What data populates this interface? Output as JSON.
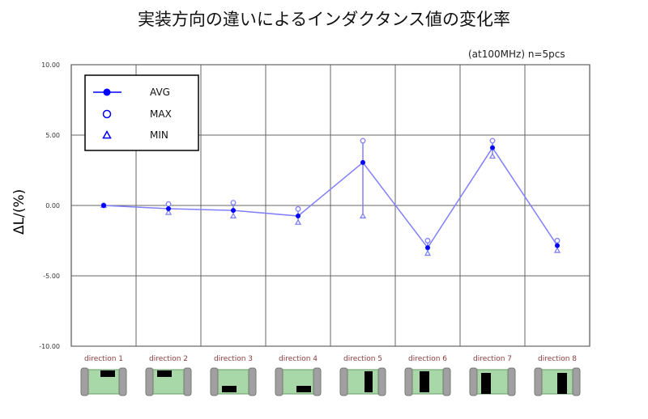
{
  "chart_data": {
    "type": "line",
    "title": "実装方向の違いによるインダクタンス値の変化率",
    "subtitle": "(at100MHz)  n=5pcs",
    "ylabel": "ΔL/(%)",
    "xlabel": "",
    "ylim": [
      -10,
      10
    ],
    "yticks": [
      "10.00",
      "5.00",
      "0.00",
      "-5.00",
      "-10.00"
    ],
    "ytick_values": [
      10,
      5,
      0,
      -5,
      -10
    ],
    "grid": true,
    "legend_placement": "top-left",
    "categories": [
      "direction 1",
      "direction 2",
      "direction 3",
      "direction 4",
      "direction 5",
      "direction 6",
      "direction 7",
      "direction 8"
    ],
    "series": [
      {
        "name": "AVG",
        "marker": "filled-circle",
        "values": [
          0,
          -0.23,
          -0.35,
          -0.75,
          3.05,
          -3.0,
          4.1,
          -2.85
        ]
      },
      {
        "name": "MAX",
        "marker": "open-circle",
        "values": [
          0,
          0.1,
          0.2,
          -0.25,
          4.6,
          -2.5,
          4.6,
          -2.5
        ]
      },
      {
        "name": "MIN",
        "marker": "open-triangle",
        "values": [
          0,
          -0.5,
          -0.75,
          -1.2,
          -0.75,
          -3.4,
          3.5,
          -3.2
        ]
      }
    ],
    "colors": {
      "avg": "#0000ff",
      "line": "#8080ff",
      "category_label": "#8a3a3a",
      "chip_body": "#a8d8a8",
      "chip_end": "#a0a0a0"
    }
  }
}
